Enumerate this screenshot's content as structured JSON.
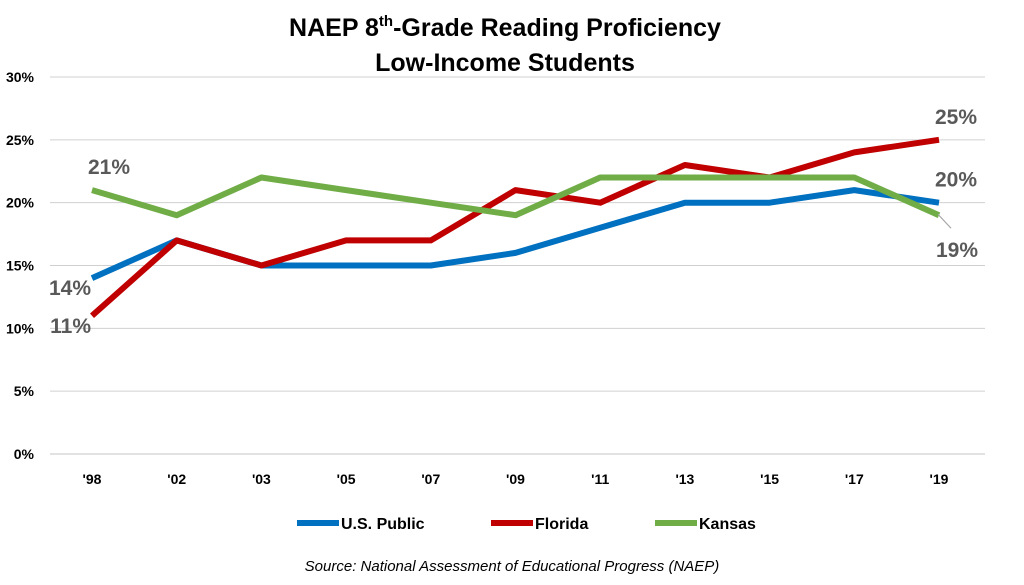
{
  "chart_data": {
    "type": "line",
    "title_parts": [
      "NAEP 8",
      "th",
      "-Grade Reading Proficiency"
    ],
    "subtitle": "Low-Income Students",
    "categories": [
      "'98",
      "'02",
      "'03",
      "'05",
      "'07",
      "'09",
      "'11",
      "'13",
      "'15",
      "'17",
      "'19"
    ],
    "yticks": [
      "0%",
      "5%",
      "10%",
      "15%",
      "20%",
      "25%",
      "30%"
    ],
    "ylim": [
      0,
      30
    ],
    "grid": true,
    "legend_position": "bottom",
    "series": [
      {
        "name": "U.S. Public",
        "color": "#0070C0",
        "values": [
          14,
          17,
          15,
          15,
          15,
          16,
          18,
          20,
          20,
          21,
          20
        ]
      },
      {
        "name": "Florida",
        "color": "#C00000",
        "values": [
          11,
          17,
          15,
          17,
          17,
          21,
          20,
          23,
          22,
          24,
          25
        ]
      },
      {
        "name": "Kansas",
        "color": "#70AD47",
        "values": [
          21,
          19,
          22,
          21,
          20,
          19,
          22,
          22,
          22,
          22,
          19
        ]
      }
    ],
    "data_labels": [
      {
        "series": 0,
        "index": 0,
        "text": "14%",
        "anchor": "below-left"
      },
      {
        "series": 1,
        "index": 0,
        "text": "11%",
        "anchor": "below-left"
      },
      {
        "series": 2,
        "index": 0,
        "text": "21%",
        "anchor": "above"
      },
      {
        "series": 1,
        "index": 10,
        "text": "25%",
        "anchor": "above"
      },
      {
        "series": 0,
        "index": 10,
        "text": "20%",
        "anchor": "above"
      },
      {
        "series": 2,
        "index": 10,
        "text": "19%",
        "anchor": "below-callout"
      }
    ],
    "source": "Source: National Assessment of Educational Progress (NAEP)"
  }
}
